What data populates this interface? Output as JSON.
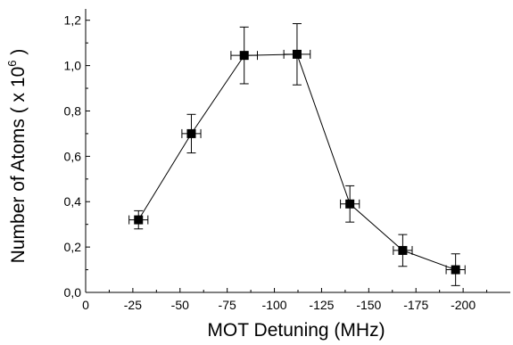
{
  "chart_data": {
    "type": "line",
    "title": "",
    "xlabel": "MOT Detuning (MHz)",
    "ylabel_main": "Number of Atoms ( x 10",
    "ylabel_exp": "6",
    "ylabel_close": " )",
    "xlim": [
      0,
      -225
    ],
    "ylim": [
      0,
      1.25
    ],
    "x_ticks": [
      0,
      -25,
      -50,
      -75,
      -100,
      -125,
      -150,
      -175,
      -200
    ],
    "x_tick_labels": [
      "0",
      "-25",
      "-50",
      "-75",
      "-100",
      "-125",
      "-150",
      "-175",
      "-200"
    ],
    "y_ticks": [
      0,
      0.2,
      0.4,
      0.6,
      0.8,
      1.0,
      1.2
    ],
    "y_tick_labels": [
      "0,0",
      "0,2",
      "0,4",
      "0,6",
      "0,8",
      "1,0",
      "1,2"
    ],
    "grid": false,
    "series": [
      {
        "marker": "square",
        "x": [
          -28,
          -56,
          -84,
          -112,
          -140,
          -168,
          -196
        ],
        "y": [
          0.32,
          0.7,
          1.045,
          1.05,
          0.39,
          0.185,
          0.1
        ],
        "y_err": [
          0.04,
          0.085,
          0.125,
          0.135,
          0.08,
          0.07,
          0.07
        ],
        "x_err": [
          5,
          5,
          7,
          7,
          5,
          5,
          5
        ]
      }
    ]
  }
}
